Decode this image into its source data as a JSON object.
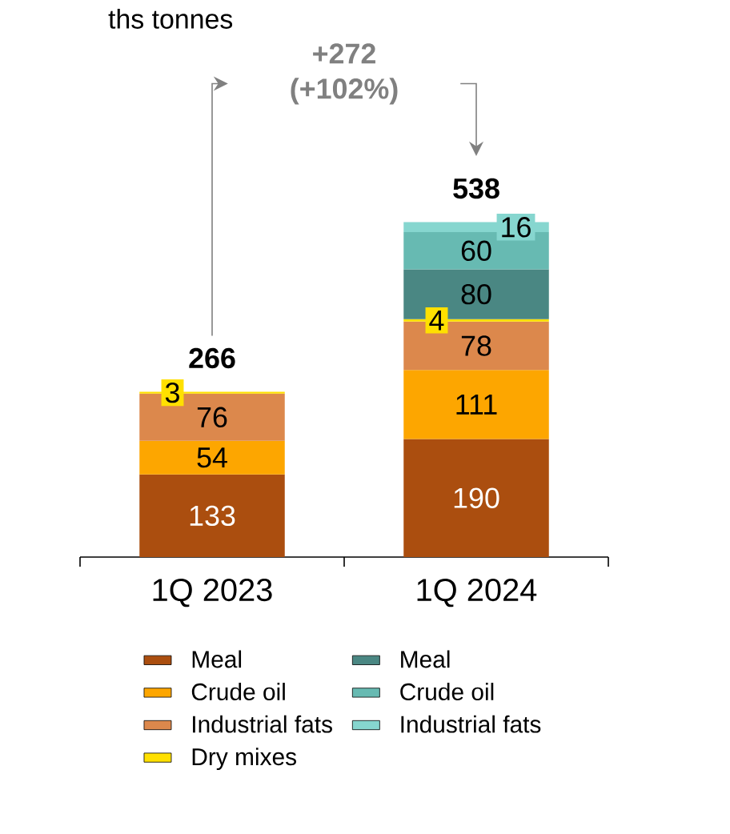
{
  "chart_data": {
    "type": "bar",
    "title": "ths tonnes",
    "stacked": true,
    "data_labels": true,
    "legend": "bottom",
    "categories": [
      "1Q 2023",
      "1Q 2024"
    ],
    "series": [
      {
        "name": "Meal",
        "color": "#ab4e0f",
        "values": [
          133,
          190
        ]
      },
      {
        "name": "Crude oil",
        "color": "#fda600",
        "values": [
          54,
          111
        ]
      },
      {
        "name": "Industrial fats",
        "color": "#dc884c",
        "values": [
          76,
          78
        ]
      },
      {
        "name": "Dry mixes",
        "color": "#ffe000",
        "values": [
          3,
          4
        ]
      },
      {
        "name": "Meal",
        "color": "#4a8783",
        "values": [
          null,
          80
        ]
      },
      {
        "name": "Crude oil",
        "color": "#67bab2",
        "values": [
          null,
          60
        ]
      },
      {
        "name": "Industrial fats",
        "color": "#86d6cf",
        "values": [
          null,
          16
        ]
      }
    ],
    "totals": [
      "266",
      "538"
    ],
    "annotations": [
      "+272 (+102%)"
    ]
  }
}
